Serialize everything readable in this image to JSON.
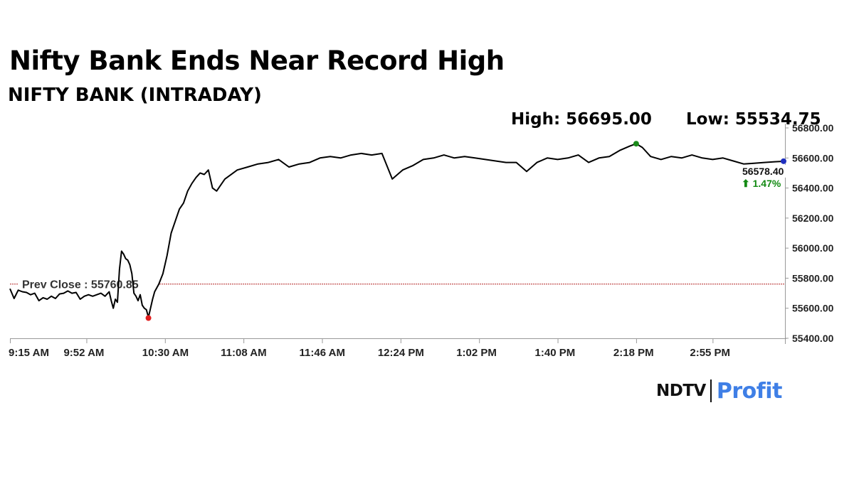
{
  "headline": "Nifty Bank Ends Near Record High",
  "chart_data": {
    "type": "line",
    "title": "NIFTY BANK (INTRADAY)",
    "high_label": "High: 56695.00",
    "low_label": "Low: 55534.75",
    "prev_close_label": "Prev Close : 55760.85",
    "prev_close": 55760.85,
    "last_value_label": "56578.40",
    "change_label": "⬆ 1.47%",
    "y_ticks": [
      "56800.00",
      "56600.00",
      "56400.00",
      "56200.00",
      "56000.00",
      "55800.00",
      "55600.00",
      "55400.00"
    ],
    "x_ticks": [
      "9:15 AM",
      "9:52 AM",
      "10:30 AM",
      "11:08 AM",
      "11:46 AM",
      "12:24 PM",
      "1:02 PM",
      "1:40 PM",
      "2:18 PM",
      "2:55 PM"
    ],
    "ylim": [
      55400,
      56800
    ],
    "xlim": [
      0,
      375
    ],
    "high": {
      "t": 303,
      "v": 56695.0
    },
    "low": {
      "t": 67,
      "v": 55534.75
    },
    "last": {
      "t": 375,
      "v": 56578.4
    },
    "colors": {
      "line": "#000000",
      "prev_close_line": "#b22222",
      "high_dot": "#1a8a1a",
      "low_dot": "#e11d1d",
      "last_dot": "#1f2fbf",
      "change": "#138a13"
    },
    "series": [
      {
        "t": [
          0,
          2,
          4,
          6,
          8,
          10,
          12,
          14,
          16,
          18,
          20,
          22,
          24,
          26,
          28,
          30,
          32,
          34,
          36,
          38,
          40,
          42,
          44,
          46,
          48,
          49,
          50,
          51,
          52,
          53,
          54,
          55,
          56,
          57,
          58,
          59,
          60,
          61,
          62,
          63,
          64,
          65,
          66,
          67,
          68,
          69,
          70,
          72,
          74,
          76,
          78,
          80,
          82,
          84,
          86,
          88,
          90,
          92,
          94,
          96,
          98,
          100,
          102,
          104,
          106,
          108,
          110,
          115,
          120,
          125,
          130,
          135,
          140,
          145,
          150,
          155,
          160,
          165,
          170,
          175,
          180,
          185,
          190,
          195,
          200,
          205,
          210,
          215,
          220,
          225,
          230,
          235,
          240,
          245,
          250,
          255,
          260,
          265,
          270,
          275,
          280,
          285,
          290,
          295,
          300,
          303,
          306,
          310,
          315,
          320,
          325,
          330,
          335,
          340,
          345,
          350,
          355,
          360,
          365,
          370,
          375
        ],
        "v": [
          55730,
          55665,
          55720,
          55710,
          55705,
          55690,
          55700,
          55650,
          55670,
          55660,
          55680,
          55665,
          55695,
          55700,
          55715,
          55700,
          55705,
          55660,
          55680,
          55690,
          55680,
          55690,
          55700,
          55680,
          55710,
          55650,
          55600,
          55660,
          55640,
          55860,
          55980,
          55960,
          55930,
          55920,
          55890,
          55830,
          55700,
          55680,
          55650,
          55690,
          55620,
          55600,
          55590,
          55540,
          55600,
          55660,
          55710,
          55760,
          55830,
          55950,
          56100,
          56180,
          56260,
          56300,
          56380,
          56430,
          56470,
          56500,
          56490,
          56520,
          56400,
          56380,
          56420,
          56460,
          56480,
          56500,
          56520,
          56540,
          56560,
          56570,
          56590,
          56540,
          56560,
          56570,
          56600,
          56610,
          56600,
          56620,
          56630,
          56620,
          56630,
          56460,
          56520,
          56550,
          56590,
          56600,
          56620,
          56600,
          56610,
          56600,
          56590,
          56580,
          56570,
          56570,
          56510,
          56570,
          56600,
          56590,
          56600,
          56620,
          56570,
          56600,
          56610,
          56650,
          56680,
          56695,
          56670,
          56610,
          56590,
          56610,
          56600,
          56620,
          56600,
          56590,
          56600,
          56580,
          56560,
          56565,
          56570,
          56575,
          56578.4
        ]
      }
    ]
  }
}
